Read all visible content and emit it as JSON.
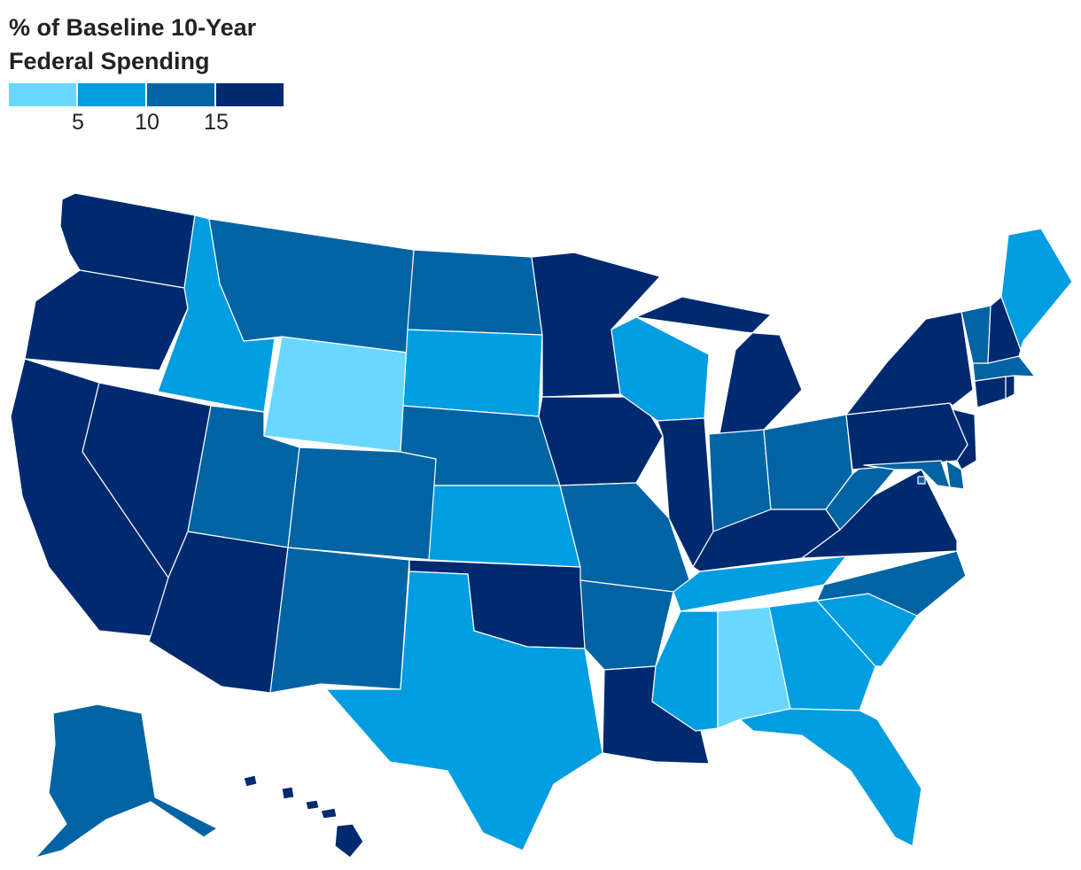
{
  "legend": {
    "title_line1": "% of Baseline 10-Year",
    "title_line2": "Federal Spending",
    "ticks": [
      "5",
      "10",
      "15"
    ],
    "bins": [
      {
        "color": "#6ad7ff",
        "min": null,
        "max": 5
      },
      {
        "color": "#009de0",
        "min": 5,
        "max": 10
      },
      {
        "color": "#0064a4",
        "min": 10,
        "max": 15
      },
      {
        "color": "#002a70",
        "min": 15,
        "max": null
      }
    ]
  },
  "map_data": {
    "region": "United States",
    "bins_by_state": {
      "WA": 3,
      "OR": 3,
      "CA": 3,
      "NV": 3,
      "AZ": 3,
      "ID": 1,
      "MT": 2,
      "WY": 0,
      "UT": 2,
      "CO": 2,
      "NM": 2,
      "ND": 2,
      "SD": 1,
      "NE": 2,
      "KS": 1,
      "OK": 3,
      "TX": 1,
      "MN": 3,
      "IA": 3,
      "MO": 2,
      "AR": 2,
      "LA": 3,
      "WI": 1,
      "IL": 3,
      "MI": 3,
      "IN": 2,
      "OH": 2,
      "KY": 3,
      "TN": 1,
      "MS": 1,
      "AL": 0,
      "GA": 1,
      "FL": 1,
      "SC": 1,
      "NC": 2,
      "VA": 3,
      "WV": 2,
      "PA": 3,
      "NY": 3,
      "NJ": 3,
      "DE": 2,
      "MD": 2,
      "DC": 2,
      "CT": 3,
      "RI": 3,
      "MA": 2,
      "VT": 2,
      "NH": 3,
      "ME": 1,
      "AK": 2,
      "HI": 3
    }
  }
}
